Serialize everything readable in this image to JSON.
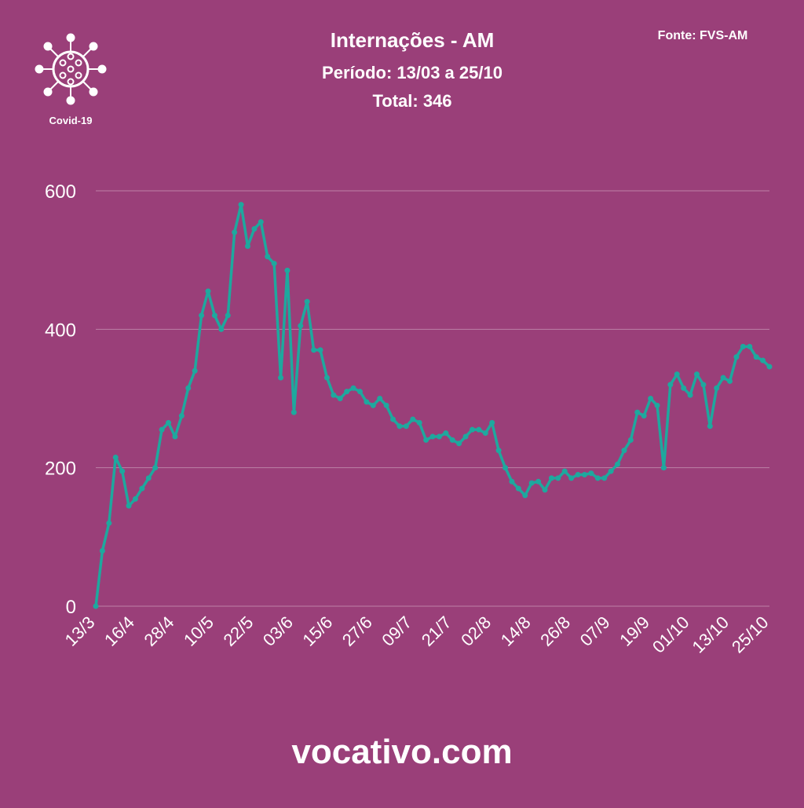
{
  "chart_data": {
    "type": "line",
    "title": "Internações - AM",
    "subtitle": "Período: 13/03 a 25/10",
    "total": "Total: 346",
    "source": "Fonte: FVS-AM",
    "icon_label": "Covid-19",
    "footer": "vocativo.com",
    "categories": [
      "13/3",
      null,
      null,
      null,
      null,
      null,
      "16/4",
      null,
      null,
      null,
      null,
      null,
      "28/4",
      null,
      null,
      null,
      null,
      null,
      "10/5",
      null,
      null,
      null,
      null,
      null,
      "22/5",
      null,
      null,
      null,
      null,
      null,
      "03/6",
      null,
      null,
      null,
      null,
      null,
      "15/6",
      null,
      null,
      null,
      null,
      null,
      "27/6",
      null,
      null,
      null,
      null,
      null,
      "09/7",
      null,
      null,
      null,
      null,
      null,
      "21/7",
      null,
      null,
      null,
      null,
      null,
      "02/8",
      null,
      null,
      null,
      null,
      null,
      "14/8",
      null,
      null,
      null,
      null,
      null,
      "26/8",
      null,
      null,
      null,
      null,
      null,
      "07/9",
      null,
      null,
      null,
      null,
      null,
      "19/9",
      null,
      null,
      null,
      null,
      null,
      "01/10",
      null,
      null,
      null,
      null,
      null,
      "13/10",
      null,
      null,
      null,
      null,
      null,
      "25/10"
    ],
    "series": [
      {
        "name": "Internações",
        "color": "#1ea89e",
        "values": [
          0,
          80,
          120,
          215,
          195,
          145,
          155,
          170,
          185,
          200,
          255,
          265,
          245,
          275,
          315,
          340,
          420,
          455,
          420,
          400,
          420,
          540,
          580,
          520,
          545,
          555,
          505,
          495,
          330,
          485,
          280,
          405,
          440,
          370,
          370,
          330,
          305,
          300,
          310,
          315,
          310,
          295,
          290,
          300,
          290,
          270,
          260,
          260,
          270,
          265,
          240,
          245,
          245,
          250,
          240,
          235,
          245,
          255,
          255,
          250,
          265,
          225,
          200,
          180,
          170,
          160,
          178,
          180,
          168,
          185,
          185,
          195,
          185,
          190,
          190,
          192,
          185,
          185,
          195,
          205,
          225,
          240,
          280,
          275,
          300,
          290,
          200,
          320,
          335,
          315,
          305,
          335,
          320,
          260,
          315,
          330,
          325,
          360,
          375,
          375,
          360,
          355,
          346
        ]
      }
    ],
    "ylim": [
      0,
      600
    ],
    "yticks": [
      0,
      200,
      400,
      600
    ],
    "grid": true
  }
}
